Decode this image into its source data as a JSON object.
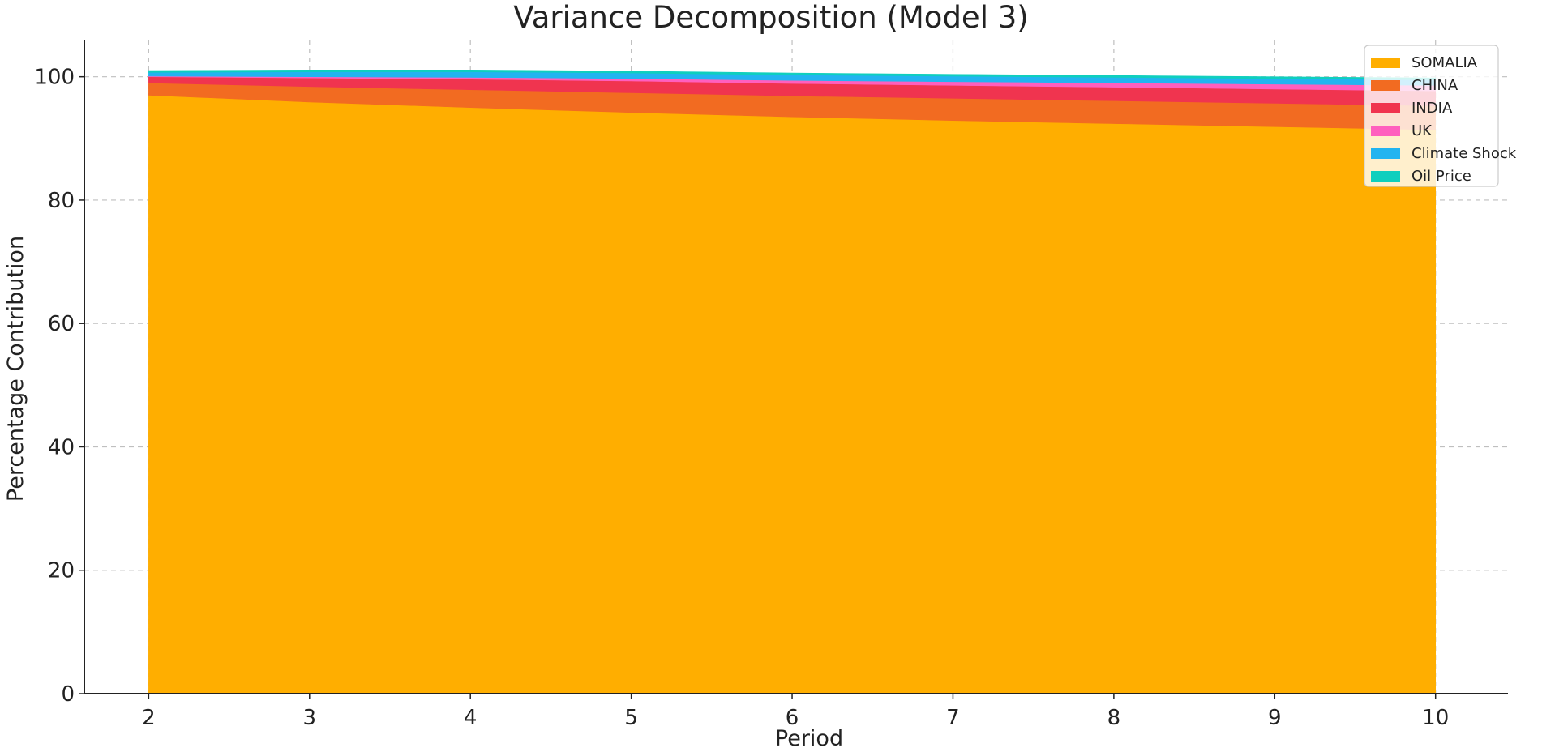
{
  "chart_data": {
    "type": "area",
    "title": "Variance Decomposition (Model 3)",
    "xlabel": "Period",
    "ylabel": "Percentage Contribution",
    "x": [
      2,
      3,
      4,
      5,
      6,
      7,
      8,
      9,
      10
    ],
    "xlim": [
      1.6,
      10.45
    ],
    "ylim": [
      0,
      106
    ],
    "xticks": [
      2,
      3,
      4,
      5,
      6,
      7,
      8,
      9,
      10
    ],
    "yticks": [
      0,
      20,
      40,
      60,
      80,
      100
    ],
    "grid": true,
    "legend_position": "top-right",
    "series": [
      {
        "name": "SOMALIA",
        "color": "#FFAE00",
        "values": [
          97.0,
          95.9,
          95.0,
          94.2,
          93.5,
          92.9,
          92.4,
          91.9,
          91.4
        ]
      },
      {
        "name": "CHINA",
        "color": "#F26B21",
        "values": [
          2.0,
          2.5,
          2.9,
          3.2,
          3.4,
          3.6,
          3.7,
          3.8,
          3.9
        ]
      },
      {
        "name": "INDIA",
        "color": "#F0344F",
        "values": [
          1.0,
          1.4,
          1.7,
          1.9,
          2.0,
          2.1,
          2.2,
          2.3,
          2.4
        ]
      },
      {
        "name": "UK",
        "color": "#FF5FBE",
        "values": [
          0.1,
          0.2,
          0.3,
          0.4,
          0.5,
          0.6,
          0.7,
          0.8,
          0.9
        ]
      },
      {
        "name": "Climate Shock",
        "color": "#22B4F0",
        "values": [
          0.6,
          0.8,
          0.9,
          0.9,
          0.9,
          0.9,
          0.9,
          0.9,
          0.9
        ]
      },
      {
        "name": "Oil Price",
        "color": "#0FCFBE",
        "values": [
          0.3,
          0.3,
          0.3,
          0.3,
          0.3,
          0.3,
          0.3,
          0.3,
          0.3
        ]
      }
    ]
  }
}
